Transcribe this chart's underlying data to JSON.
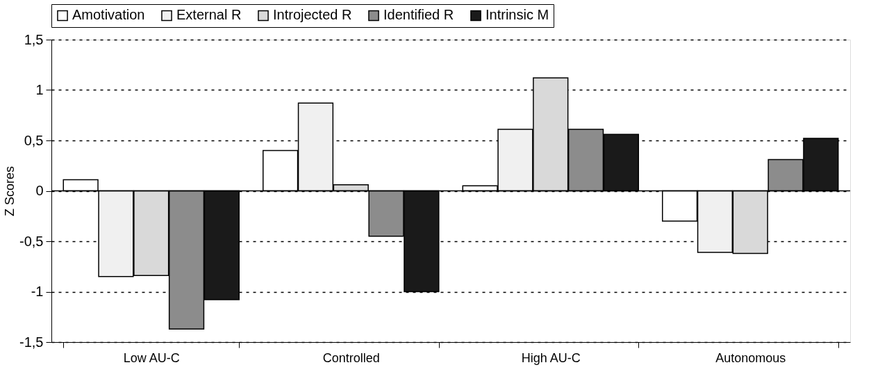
{
  "chart_data": {
    "type": "bar",
    "ylabel": "Z Scores",
    "categories": [
      "Low AU-C",
      "Controlled",
      "High AU-C",
      "Autonomous"
    ],
    "series": [
      {
        "name": "Amotivation",
        "color": "#ffffff",
        "values": [
          0.11,
          0.4,
          0.05,
          -0.3
        ]
      },
      {
        "name": "External R",
        "color": "#f0f0f0",
        "values": [
          -0.85,
          0.87,
          0.61,
          -0.61
        ]
      },
      {
        "name": "Introjected R",
        "color": "#d9d9d9",
        "values": [
          -0.84,
          0.06,
          1.12,
          -0.62
        ]
      },
      {
        "name": "Identified R",
        "color": "#8c8c8c",
        "values": [
          -1.37,
          -0.45,
          0.61,
          0.31
        ]
      },
      {
        "name": "Intrinsic M",
        "color": "#1a1a1a",
        "values": [
          -1.08,
          -1.0,
          0.56,
          0.52
        ]
      }
    ],
    "ylim": [
      -1.5,
      1.5
    ],
    "yticks": [
      {
        "value": -1.5,
        "label": "-1,5"
      },
      {
        "value": -1,
        "label": "-1"
      },
      {
        "value": -0.5,
        "label": "-0,5"
      },
      0,
      {
        "value": 0.5,
        "label": "0,5"
      },
      1,
      {
        "value": 1.5,
        "label": "1,5"
      }
    ],
    "grid": "y",
    "legend": "top"
  }
}
